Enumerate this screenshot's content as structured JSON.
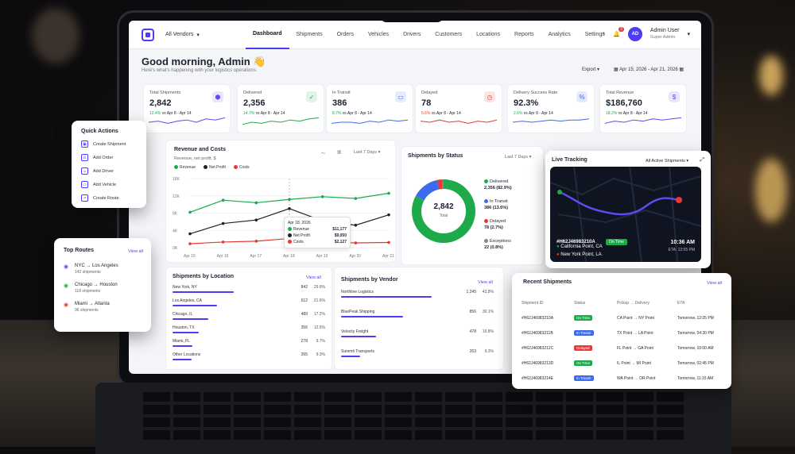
{
  "nav": {
    "vendor": "All Vendors",
    "tabs": [
      "Dashboard",
      "Shipments",
      "Orders",
      "Vehicles",
      "Drivers",
      "Customers",
      "Locations",
      "Reports",
      "Analytics",
      "Settings"
    ],
    "notif_count": "3",
    "user_name": "Admin User",
    "user_role": "Super Admin",
    "avatar": "AD"
  },
  "header": {
    "greeting": "Good morning, Admin 👋",
    "subtitle": "Here's what's happening with your logistics operations.",
    "export": "Export",
    "date_range": "Apr 15, 2026 - Apr 21, 2026"
  },
  "kpis": [
    {
      "label": "Total Shipments",
      "value": "2,842",
      "delta": "12.4%",
      "note": "vs Apr 8 - Apr 14",
      "icon": "box-icon",
      "color": "#5b4cf0",
      "spark": [
        5,
        6,
        4,
        6,
        7,
        5,
        8,
        7,
        9
      ]
    },
    {
      "label": "Delivered",
      "value": "2,356",
      "delta": "14.7%",
      "note": "vs Apr 8 - Apr 14",
      "icon": "check-icon",
      "color": "#1eaa4a",
      "spark": [
        3,
        5,
        4,
        6,
        5,
        7,
        6,
        8,
        9
      ]
    },
    {
      "label": "In Transit",
      "value": "386",
      "delta": "8.7%",
      "note": "vs Apr 8 - Apr 14",
      "icon": "truck-icon",
      "color": "#3b6cf0",
      "spark": [
        4,
        5,
        5,
        4,
        6,
        5,
        7,
        6,
        7
      ]
    },
    {
      "label": "Delayed",
      "value": "78",
      "delta": "5.6%",
      "note": "vs Apr 8 - Apr 14",
      "icon": "clock-icon",
      "color": "#e53935",
      "spark": [
        6,
        5,
        7,
        5,
        6,
        4,
        6,
        5,
        7
      ]
    },
    {
      "label": "Delivery Success Rate",
      "value": "92.3%",
      "delta": "2.6%",
      "note": "vs Apr 8 - Apr 14",
      "icon": "percent-icon",
      "color": "#3b6cf0",
      "spark": [
        5,
        6,
        5,
        6,
        7,
        6,
        7,
        7,
        8
      ]
    },
    {
      "label": "Total Revenue",
      "value": "$186,760",
      "delta": "18.2%",
      "note": "vs Apr 8 - Apr 14",
      "icon": "dollar-icon",
      "color": "#5b4cf0",
      "spark": [
        4,
        6,
        5,
        7,
        6,
        8,
        7,
        8,
        9
      ]
    }
  ],
  "revenue": {
    "title": "Revenue and Costs",
    "subtitle": "Revenue, net profit, $",
    "range": "Last 7 Days",
    "legend": [
      "Revenue",
      "Net Profit",
      "Costs"
    ],
    "tooltip": {
      "date": "Apr 18, 2026",
      "rows": [
        {
          "label": "Revenue",
          "value": "$11,177"
        },
        {
          "label": "Net Profit",
          "value": "$9,050"
        },
        {
          "label": "Costs",
          "value": "$2,127"
        }
      ]
    }
  },
  "chart_data": {
    "type": "line",
    "x": [
      "Apr 15",
      "Apr 16",
      "Apr 17",
      "Apr 18",
      "Apr 19",
      "Apr 20",
      "Apr 21"
    ],
    "ylim": [
      0,
      16000
    ],
    "yticks": [
      "0K",
      "4K",
      "8K",
      "12K",
      "16K"
    ],
    "series": [
      {
        "name": "Revenue",
        "color": "#1eaa4a",
        "values": [
          8200,
          11000,
          10400,
          11177,
          11800,
          11400,
          12600
        ]
      },
      {
        "name": "Net Profit",
        "color": "#222222",
        "values": [
          3200,
          5600,
          6400,
          9050,
          6200,
          5200,
          7600
        ]
      },
      {
        "name": "Costs",
        "color": "#e53935",
        "values": [
          900,
          1300,
          1500,
          2127,
          1300,
          1100,
          1200
        ]
      }
    ]
  },
  "status": {
    "title": "Shipments by Status",
    "range": "Last 7 Days",
    "total": "2,842",
    "total_label": "Total",
    "items": [
      {
        "label": "Delivered",
        "value": "2,356 (82.9%)",
        "color": "#1eaa4a",
        "frac": 0.829
      },
      {
        "label": "In Transit",
        "value": "386 (13.6%)",
        "color": "#3b6cf0",
        "frac": 0.136
      },
      {
        "label": "Delayed",
        "value": "78 (2.7%)",
        "color": "#e53935",
        "frac": 0.027
      },
      {
        "label": "Exceptions",
        "value": "22 (0.8%)",
        "color": "#888888",
        "frac": 0.008
      }
    ]
  },
  "location": {
    "title": "Shipments by Location",
    "view_all": "View all",
    "rows": [
      {
        "name": "New York, NY",
        "count": "842",
        "pct": "29.6%",
        "frac": 0.296
      },
      {
        "name": "Los Angeles, CA",
        "count": "612",
        "pct": "21.6%",
        "frac": 0.216
      },
      {
        "name": "Chicago, IL",
        "count": "489",
        "pct": "17.2%",
        "frac": 0.172
      },
      {
        "name": "Houston, TX",
        "count": "356",
        "pct": "12.5%",
        "frac": 0.125
      },
      {
        "name": "Miami, FL",
        "count": "278",
        "pct": "9.7%",
        "frac": 0.097
      },
      {
        "name": "Other Locations",
        "count": "265",
        "pct": "9.3%",
        "frac": 0.093
      }
    ]
  },
  "vendor": {
    "title": "Shipments by Vendor",
    "view_all": "View all",
    "rows": [
      {
        "name": "Northline Logistics",
        "count": "1,245",
        "pct": "43.8%",
        "frac": 0.438
      },
      {
        "name": "BluePeak Shipping",
        "count": "856",
        "pct": "30.1%",
        "frac": 0.301
      },
      {
        "name": "Velocity Freight",
        "count": "478",
        "pct": "16.8%",
        "frac": 0.168
      },
      {
        "name": "Summit Transports",
        "count": "263",
        "pct": "9.3%",
        "frac": 0.093
      }
    ]
  },
  "quick_actions": {
    "title": "Quick Actions",
    "items": [
      {
        "label": "Create Shipment",
        "icon": "box-icon"
      },
      {
        "label": "Add Order",
        "icon": "cart-icon"
      },
      {
        "label": "Add Driver",
        "icon": "user-icon"
      },
      {
        "label": "Add Vehicle",
        "icon": "truck-icon"
      },
      {
        "label": "Create Route",
        "icon": "route-icon"
      }
    ]
  },
  "top_routes": {
    "title": "Top Routes",
    "view_all": "View all",
    "items": [
      {
        "from": "NYC",
        "to": "Los Angeles",
        "count": "142 shipments",
        "color": "#5b4cf0"
      },
      {
        "from": "Chicago",
        "to": "Houston",
        "count": "118 shipments",
        "color": "#1eaa4a"
      },
      {
        "from": "Miami",
        "to": "Atlanta",
        "count": "96 shipments",
        "color": "#e53935"
      }
    ]
  },
  "live": {
    "title": "Live Tracking",
    "filter": "All Active Shipments",
    "shipment_id": "#H62J46983210A",
    "status": "On Time",
    "origin": "California Point, CA",
    "destination": "New York Point, LA",
    "time": "10:36 AM",
    "eta": "ETA: 12:05 PM"
  },
  "recent": {
    "title": "Recent Shipments",
    "view_all": "View all",
    "headers": [
      "Shipment ID",
      "Status",
      "Pickup → Delivery",
      "ETA"
    ],
    "rows": [
      {
        "id": "#H62J46983210A",
        "status": "On Time",
        "color": "#1eaa4a",
        "route": "CA Point → NY Point",
        "eta": "Tomorrow, 12:05 PM"
      },
      {
        "id": "#H62J46983211B",
        "status": "In Transit",
        "color": "#3b6cf0",
        "route": "TX Point → LA Point",
        "eta": "Tomorrow, 04:30 PM"
      },
      {
        "id": "#H62J46983212C",
        "status": "Delayed",
        "color": "#e53935",
        "route": "FL Point → GA Point",
        "eta": "Tomorrow, 10:00 AM"
      },
      {
        "id": "#H62J46983213D",
        "status": "On Time",
        "color": "#1eaa4a",
        "route": "IL Point → MI Point",
        "eta": "Tomorrow, 02:45 PM"
      },
      {
        "id": "#H62J46983214E",
        "status": "In Transit",
        "color": "#3b6cf0",
        "route": "WA Point → OR Point",
        "eta": "Tomorrow, 11:15 AM"
      }
    ]
  }
}
